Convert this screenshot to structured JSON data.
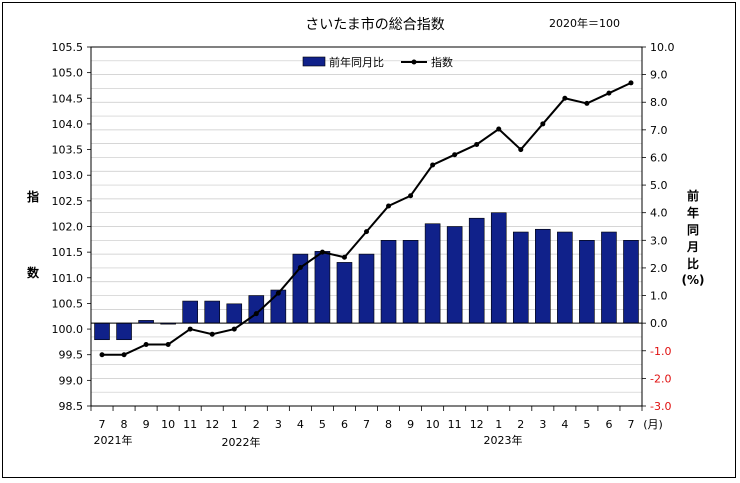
{
  "chart_data": {
    "type": "bar",
    "title": "さいたま市の総合指数",
    "base_note": "2020年＝100",
    "left_axis_label": [
      "指",
      "数"
    ],
    "right_axis_label": [
      "前",
      "年",
      "同",
      "月",
      "比",
      "(%)"
    ],
    "x_unit_label": "(月)",
    "year_labels": [
      "2021年",
      "2022年",
      "2023年"
    ],
    "categories": [
      "7",
      "8",
      "9",
      "10",
      "11",
      "12",
      "1",
      "2",
      "3",
      "4",
      "5",
      "6",
      "7",
      "8",
      "9",
      "10",
      "11",
      "12",
      "1",
      "2",
      "3",
      "4",
      "5",
      "6",
      "7"
    ],
    "y_left_ticks": [
      "98.5",
      "99.0",
      "99.5",
      "100.0",
      "100.5",
      "101.0",
      "101.5",
      "102.0",
      "102.5",
      "103.0",
      "103.5",
      "104.0",
      "104.5",
      "105.0",
      "105.5"
    ],
    "y_right_ticks": [
      "-3.0",
      "-2.0",
      "-1.0",
      "0.0",
      "1.0",
      "2.0",
      "3.0",
      "4.0",
      "5.0",
      "6.0",
      "7.0",
      "8.0",
      "9.0",
      "10.0"
    ],
    "y_left_range": [
      98.5,
      105.5
    ],
    "y_right_range": [
      -3.0,
      10.0
    ],
    "series": [
      {
        "name": "前年同月比",
        "axis": "right",
        "kind": "bar",
        "color": "#10218a",
        "values": [
          -0.6,
          -0.6,
          0.1,
          0.0,
          0.8,
          0.8,
          0.7,
          1.0,
          1.2,
          2.5,
          2.6,
          2.2,
          2.5,
          3.0,
          3.0,
          3.6,
          3.5,
          3.8,
          4.0,
          3.3,
          3.4,
          3.3,
          3.0,
          3.3,
          3.0
        ]
      },
      {
        "name": "指数",
        "axis": "left",
        "kind": "line",
        "color": "#000000",
        "values": [
          99.5,
          99.5,
          99.7,
          99.7,
          100.0,
          99.9,
          100.0,
          100.3,
          100.7,
          101.2,
          101.5,
          101.4,
          101.9,
          102.4,
          102.6,
          103.2,
          103.4,
          103.6,
          103.9,
          103.5,
          104.0,
          104.5,
          104.4,
          104.6,
          104.8
        ]
      }
    ],
    "legend_position": "top-right",
    "grid": true
  }
}
